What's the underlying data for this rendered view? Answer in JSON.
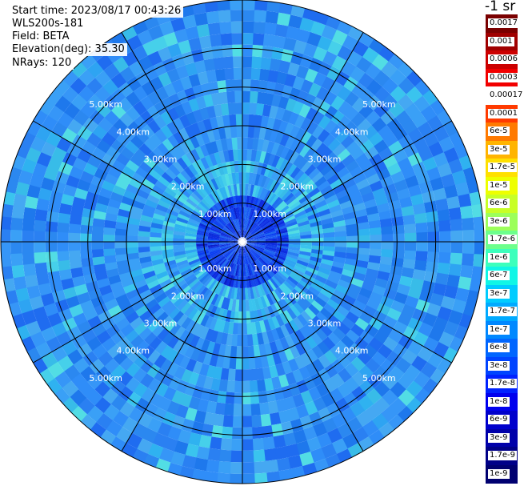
{
  "info": {
    "start_time": "Start time: 2023/08/17 00:43:26",
    "instrument": "WLS200s-181",
    "field": "Field: BETA",
    "elevation": "Elevation(deg): 35.30",
    "nrays": "NRays: 120"
  },
  "colorbar": {
    "title": "-1 sr",
    "labels": [
      "0.0017",
      "0.001",
      "0.0006",
      "0.0003",
      "0.00017",
      "0.0001",
      "6e-5",
      "3e-5",
      "1.7e-5",
      "1e-5",
      "6e-6",
      "3e-6",
      "1.7e-6",
      "1e-6",
      "6e-7",
      "3e-7",
      "1.7e-7",
      "1e-7",
      "6e-8",
      "3e-8",
      "1.7e-8",
      "1e-8",
      "6e-9",
      "3e-9",
      "1.7e-9",
      "1e-9"
    ],
    "colors": [
      "#7a0000",
      "#a00000",
      "#cc0000",
      "#f20000",
      "#ffffff",
      "#ff3a00",
      "#ff7a00",
      "#ffb400",
      "#ffe000",
      "#eeff00",
      "#c8ff26",
      "#9cff5a",
      "#6cff8c",
      "#3cffbc",
      "#10f6e6",
      "#00ccff",
      "#00aaff",
      "#0088ff",
      "#0066ff",
      "#0044ff",
      "#0022ff",
      "#0000ee",
      "#0000cc",
      "#0000aa",
      "#000088",
      "#000070"
    ]
  },
  "chart_data": {
    "type": "ppi",
    "field": "BETA",
    "elevation_deg": 35.3,
    "n_rays": 120,
    "range_rings_km": [
      1,
      2,
      3,
      4,
      5
    ],
    "ring_labels": [
      "1.00km",
      "2.00km",
      "3.00km",
      "4.00km",
      "5.00km"
    ],
    "max_range_km": 6.25,
    "azimuth_lines_deg": [
      0,
      30,
      60,
      90,
      120,
      150
    ],
    "label_azimuths_deg": [
      45,
      135,
      225,
      315
    ],
    "color_scale_log10_range": [
      -9,
      -2.77
    ]
  }
}
